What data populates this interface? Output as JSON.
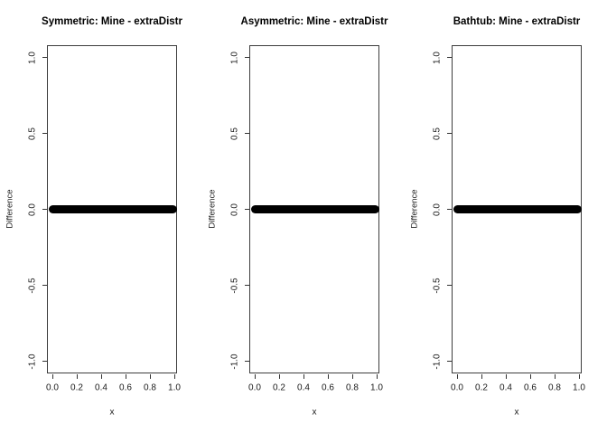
{
  "figure": {
    "background_color": "#ffffff",
    "box_border_color": "#3d3d3d",
    "tick_color": "#333333",
    "text_color": "#1a1a1a",
    "line_color": "#000000"
  },
  "axes": {
    "x_label": "x",
    "y_label": "Difference",
    "x_tick_labels": [
      "0.0",
      "0.2",
      "0.4",
      "0.6",
      "0.8",
      "1.0"
    ],
    "y_tick_labels": [
      "1.0",
      "0.5",
      "0.0",
      "-0.5",
      "-1.0"
    ]
  },
  "chart_data": [
    {
      "type": "line",
      "title": "Symmetric: Mine - extraDistr",
      "xlabel": "x",
      "ylabel": "Difference",
      "xlim": [
        0.0,
        1.0
      ],
      "ylim": [
        -1.0,
        1.0
      ],
      "x_ticks": [
        0.0,
        0.2,
        0.4,
        0.6,
        0.8,
        1.0
      ],
      "y_ticks": [
        1.0,
        0.5,
        0.0,
        -0.5,
        -1.0
      ],
      "grid": false,
      "legend": null,
      "series": [
        {
          "name": "Mine - extraDistr difference",
          "x_range": [
            0.0,
            1.0
          ],
          "constant_y": 0,
          "style": "dense overlapping filled points forming a thick black horizontal band at y = 0"
        }
      ]
    },
    {
      "type": "line",
      "title": "Asymmetric: Mine - extraDistr",
      "xlabel": "x",
      "ylabel": "Difference",
      "xlim": [
        0.0,
        1.0
      ],
      "ylim": [
        -1.0,
        1.0
      ],
      "x_ticks": [
        0.0,
        0.2,
        0.4,
        0.6,
        0.8,
        1.0
      ],
      "y_ticks": [
        1.0,
        0.5,
        0.0,
        -0.5,
        -1.0
      ],
      "grid": false,
      "legend": null,
      "series": [
        {
          "name": "Mine - extraDistr difference",
          "x_range": [
            0.0,
            1.0
          ],
          "constant_y": 0,
          "style": "dense overlapping filled points forming a thick black horizontal band at y = 0"
        }
      ]
    },
    {
      "type": "line",
      "title": "Bathtub: Mine - extraDistr",
      "xlabel": "x",
      "ylabel": "Difference",
      "xlim": [
        0.0,
        1.0
      ],
      "ylim": [
        -1.0,
        1.0
      ],
      "x_ticks": [
        0.0,
        0.2,
        0.4,
        0.6,
        0.8,
        1.0
      ],
      "y_ticks": [
        1.0,
        0.5,
        0.0,
        -0.5,
        -1.0
      ],
      "grid": false,
      "legend": null,
      "series": [
        {
          "name": "Mine - extraDistr difference",
          "x_range": [
            0.0,
            1.0
          ],
          "constant_y": 0,
          "style": "dense overlapping filled points forming a thick black horizontal band at y = 0"
        }
      ]
    }
  ]
}
